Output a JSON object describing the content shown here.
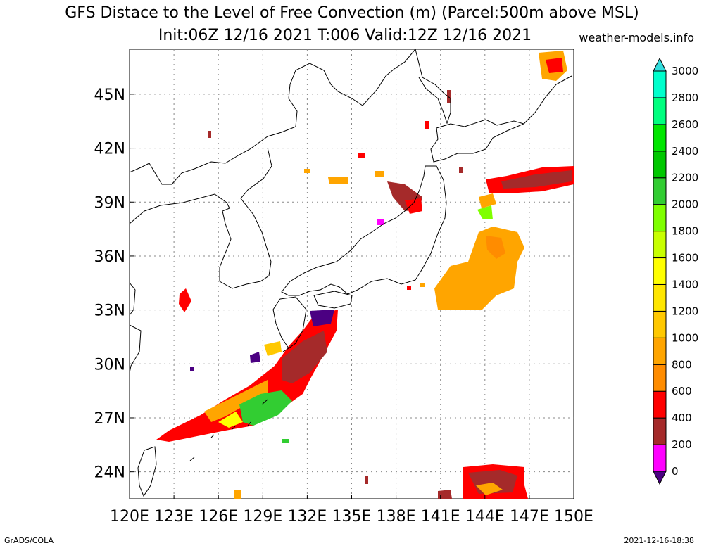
{
  "title": "GFS Distace to the Level of Free Convection (m) (Parcel:500m above MSL)",
  "subtitle": "Init:06Z 12/16 2021 T:006 Valid:12Z 12/16 2021",
  "site": "weather-models.info",
  "footer_left": "GrADS/COLA",
  "footer_right": "2021-12-16-18:38",
  "map": {
    "lon_range": [
      120,
      150
    ],
    "lat_range": [
      22.5,
      47.5
    ],
    "lon_ticks": [
      {
        "value": 120,
        "label": "120E"
      },
      {
        "value": 123,
        "label": "123E"
      },
      {
        "value": 126,
        "label": "126E"
      },
      {
        "value": 129,
        "label": "129E"
      },
      {
        "value": 132,
        "label": "132E"
      },
      {
        "value": 135,
        "label": "135E"
      },
      {
        "value": 138,
        "label": "138E"
      },
      {
        "value": 141,
        "label": "141E"
      },
      {
        "value": 144,
        "label": "144E"
      },
      {
        "value": 147,
        "label": "147E"
      },
      {
        "value": 150,
        "label": "150E"
      }
    ],
    "lat_ticks": [
      {
        "value": 24,
        "label": "24N"
      },
      {
        "value": 27,
        "label": "27N"
      },
      {
        "value": 30,
        "label": "30N"
      },
      {
        "value": 33,
        "label": "33N"
      },
      {
        "value": 36,
        "label": "36N"
      },
      {
        "value": 39,
        "label": "39N"
      },
      {
        "value": 42,
        "label": "42N"
      },
      {
        "value": 45,
        "label": "45N"
      }
    ]
  },
  "colorbar": {
    "levels": [
      {
        "label": "0",
        "color": "#4b0082"
      },
      {
        "label": "200",
        "color": "#ff00ff"
      },
      {
        "label": "400",
        "color": "#a52a2a"
      },
      {
        "label": "600",
        "color": "#ff0000"
      },
      {
        "label": "800",
        "color": "#ff8c00"
      },
      {
        "label": "1000",
        "color": "#ffa500"
      },
      {
        "label": "1200",
        "color": "#ffc800"
      },
      {
        "label": "1400",
        "color": "#ffe600"
      },
      {
        "label": "1600",
        "color": "#ffff00"
      },
      {
        "label": "1800",
        "color": "#c8ff00"
      },
      {
        "label": "2000",
        "color": "#7fff00"
      },
      {
        "label": "2200",
        "color": "#32cd32"
      },
      {
        "label": "2400",
        "color": "#00c800"
      },
      {
        "label": "2600",
        "color": "#00e600"
      },
      {
        "label": "2800",
        "color": "#00ff7f"
      },
      {
        "label": "3000",
        "color": "#00ffcc"
      }
    ],
    "under_color": "#4b0082",
    "over_color": "#33dddd"
  }
}
